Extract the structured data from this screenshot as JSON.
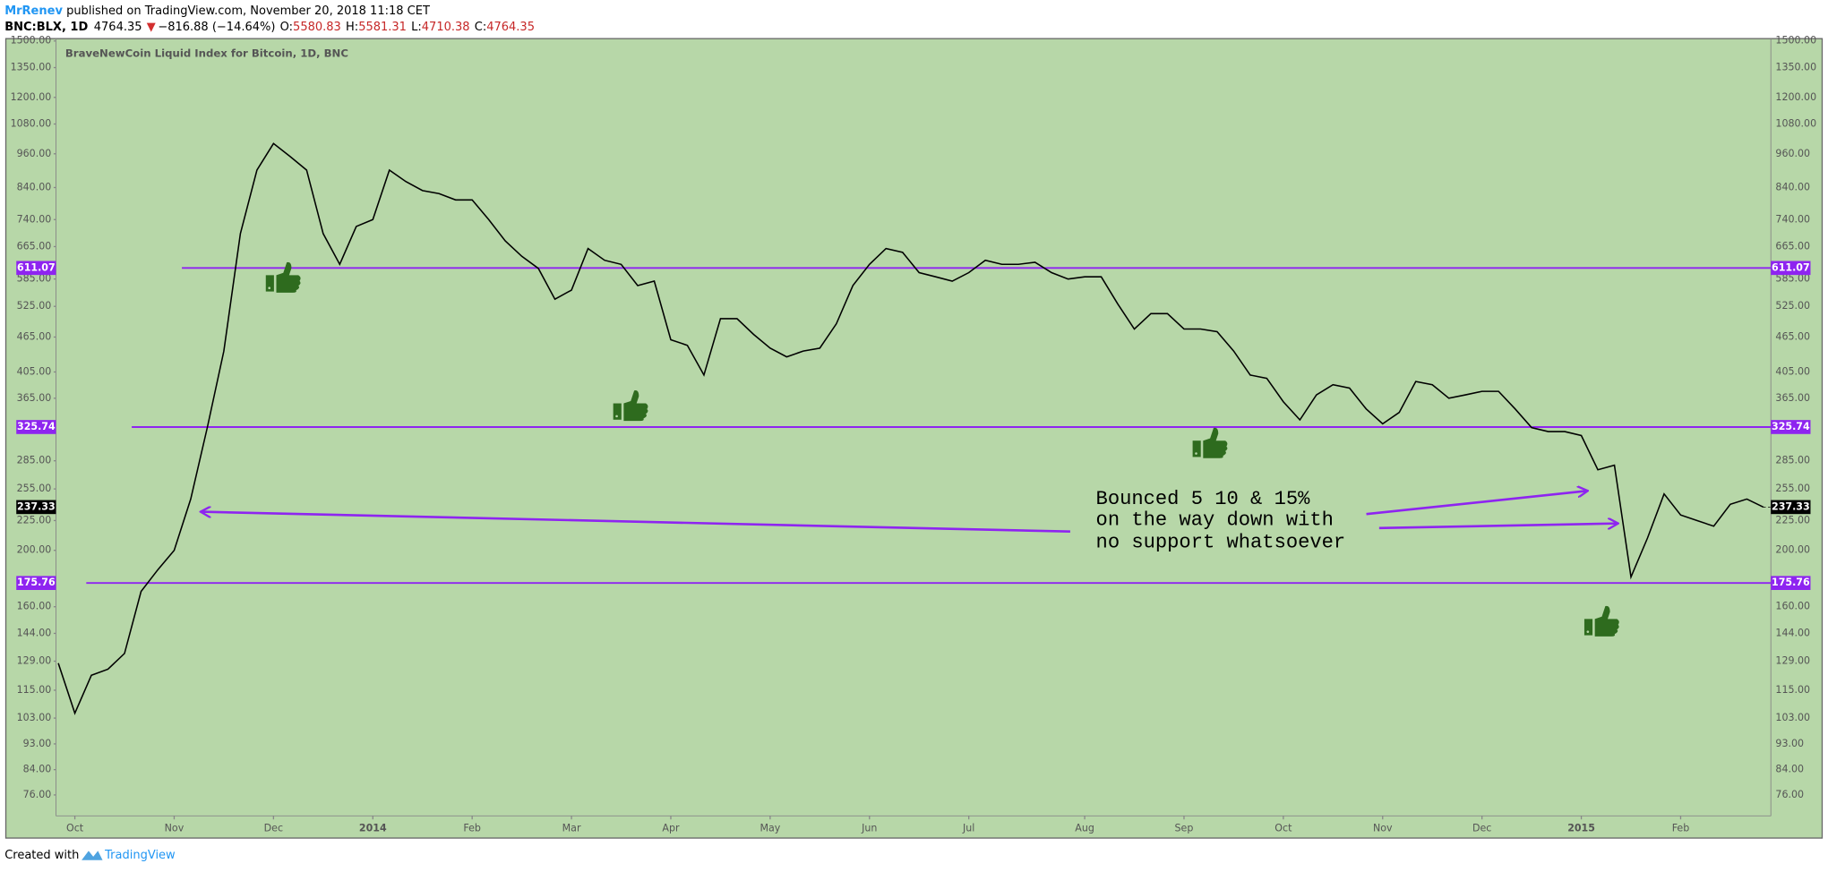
{
  "header": {
    "author": "MrRenev",
    "published": " published on TradingView.com, November 20, 2018 11:18 CET",
    "symbol": "BNC:BLX, 1D",
    "last": "4764.35",
    "arrow": "▼",
    "change": "−816.88 (−14.64%)",
    "o_label": "O:",
    "o": "5580.83",
    "h_label": "H:",
    "h": "5581.31",
    "l_label": "L:",
    "l": "4710.38",
    "c_label": "C:",
    "c": "4764.35"
  },
  "chart_data": {
    "type": "line",
    "title": "BraveNewCoin Liquid Index for Bitcoin, 1D, BNC",
    "categories": [
      null,
      "Oct",
      null,
      null,
      null,
      null,
      null,
      "Nov",
      null,
      null,
      null,
      null,
      null,
      "Dec",
      null,
      null,
      null,
      null,
      null,
      "2014",
      null,
      null,
      null,
      null,
      null,
      "Feb",
      null,
      null,
      null,
      null,
      null,
      "Mar",
      null,
      null,
      null,
      null,
      null,
      "Apr",
      null,
      null,
      null,
      null,
      null,
      "May",
      null,
      null,
      null,
      null,
      null,
      "Jun",
      null,
      null,
      null,
      null,
      null,
      "Jul",
      null,
      null,
      null,
      null,
      null,
      null,
      "Aug",
      null,
      null,
      null,
      null,
      null,
      "Sep",
      null,
      null,
      null,
      null,
      null,
      "Oct",
      null,
      null,
      null,
      null,
      null,
      "Nov",
      null,
      null,
      null,
      null,
      null,
      "Dec",
      null,
      null,
      null,
      null,
      null,
      "2015",
      null,
      null,
      null,
      null,
      null,
      "Feb",
      null,
      null,
      null,
      null,
      null
    ],
    "values": [
      128,
      105,
      122,
      125,
      133,
      170,
      185,
      200,
      245,
      325,
      440,
      700,
      900,
      1000,
      950,
      900,
      700,
      620,
      720,
      740,
      900,
      860,
      830,
      820,
      800,
      800,
      740,
      680,
      640,
      610,
      540,
      560,
      660,
      630,
      620,
      570,
      580,
      460,
      450,
      400,
      500,
      500,
      470,
      445,
      430,
      440,
      445,
      490,
      570,
      620,
      660,
      650,
      600,
      590,
      580,
      600,
      630,
      620,
      620,
      625,
      600,
      585,
      590,
      590,
      530,
      480,
      510,
      510,
      480,
      480,
      475,
      440,
      400,
      395,
      360,
      335,
      370,
      385,
      380,
      350,
      330,
      345,
      390,
      385,
      365,
      370,
      375,
      375,
      350,
      325,
      320,
      320,
      315,
      275,
      280,
      180,
      210,
      250,
      230,
      225,
      220,
      240,
      245,
      237.33
    ],
    "color": "#000000",
    "log_scale": true,
    "ylim": [
      70.6,
      1514
    ],
    "yticks": [
      {
        "value": 1500,
        "label": "1500.00"
      },
      {
        "value": 1350,
        "label": "1350.00"
      },
      {
        "value": 1200,
        "label": "1200.00"
      },
      {
        "value": 1080,
        "label": "1080.00"
      },
      {
        "value": 960,
        "label": "960.00"
      },
      {
        "value": 840,
        "label": "840.00"
      },
      {
        "value": 740,
        "label": "740.00"
      },
      {
        "value": 665,
        "label": "665.00"
      },
      {
        "value": 585,
        "label": "585.00"
      },
      {
        "value": 525,
        "label": "525.00"
      },
      {
        "value": 465,
        "label": "465.00"
      },
      {
        "value": 405,
        "label": "405.00"
      },
      {
        "value": 365,
        "label": "365.00"
      },
      {
        "value": 285,
        "label": "285.00"
      },
      {
        "value": 255,
        "label": "255.00"
      },
      {
        "value": 225,
        "label": "225.00"
      },
      {
        "value": 200,
        "label": "200.00"
      },
      {
        "value": 160,
        "label": "160.00"
      },
      {
        "value": 144,
        "label": "144.00"
      },
      {
        "value": 129,
        "label": "129.00"
      },
      {
        "value": 115,
        "label": "115.00"
      },
      {
        "value": 103,
        "label": "103.00"
      },
      {
        "value": 93,
        "label": "93.00"
      },
      {
        "value": 84,
        "label": "84.00"
      },
      {
        "value": 76,
        "label": "76.00"
      }
    ],
    "grid": false,
    "levels": [
      611.07,
      325.74,
      175.76
    ],
    "level_color": "#8e24f0",
    "annotation": [
      "Bounced 5 10 & 15%",
      "on the way down with",
      "no support whatsoever"
    ]
  },
  "footer": {
    "created": "Created with",
    "brand": "TradingView"
  }
}
